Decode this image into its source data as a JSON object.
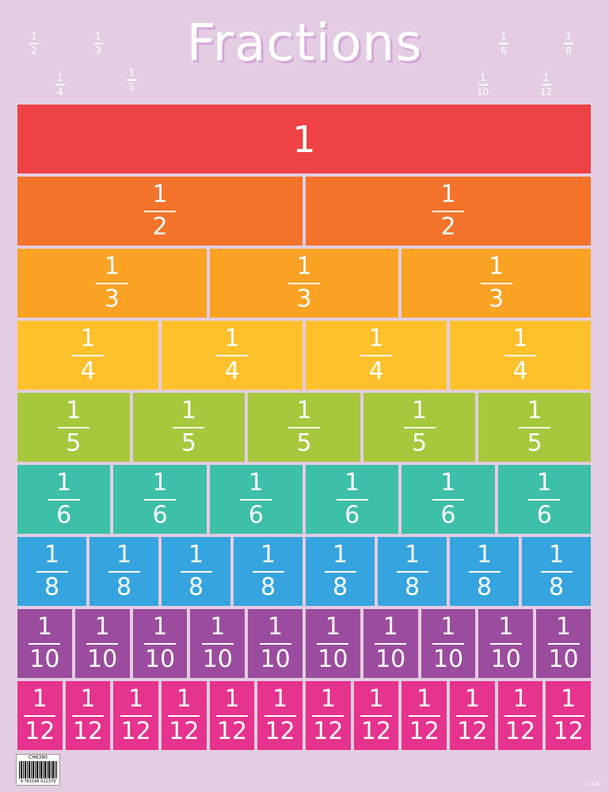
{
  "title": "Fractions",
  "decorations": [
    {
      "num": "1",
      "den": "2"
    },
    {
      "num": "1",
      "den": "3"
    },
    {
      "num": "1",
      "den": "4"
    },
    {
      "num": "1",
      "den": "5"
    },
    {
      "num": "1",
      "den": "6"
    },
    {
      "num": "1",
      "den": "8"
    },
    {
      "num": "1",
      "den": "10"
    },
    {
      "num": "1",
      "den": "12"
    }
  ],
  "rows": [
    {
      "label": "1",
      "numerator": "1",
      "denominator": "1",
      "count": 1,
      "color": "#ee4244"
    },
    {
      "numerator": "1",
      "denominator": "2",
      "count": 2,
      "color": "#f3732b"
    },
    {
      "numerator": "1",
      "denominator": "3",
      "count": 3,
      "color": "#f9a223"
    },
    {
      "numerator": "1",
      "denominator": "4",
      "count": 4,
      "color": "#fec12c"
    },
    {
      "numerator": "1",
      "denominator": "5",
      "count": 5,
      "color": "#a7c83c"
    },
    {
      "numerator": "1",
      "denominator": "6",
      "count": 6,
      "color": "#3dbfa8"
    },
    {
      "numerator": "1",
      "denominator": "8",
      "count": 8,
      "color": "#35a4df"
    },
    {
      "numerator": "1",
      "denominator": "10",
      "count": 10,
      "color": "#9b4c9e"
    },
    {
      "numerator": "1",
      "denominator": "12",
      "count": 12,
      "color": "#e6338d"
    }
  ],
  "footer": {
    "product_code": "CH6390",
    "barcode_digits": "9 781596 012379",
    "copyright": "© ATA"
  }
}
